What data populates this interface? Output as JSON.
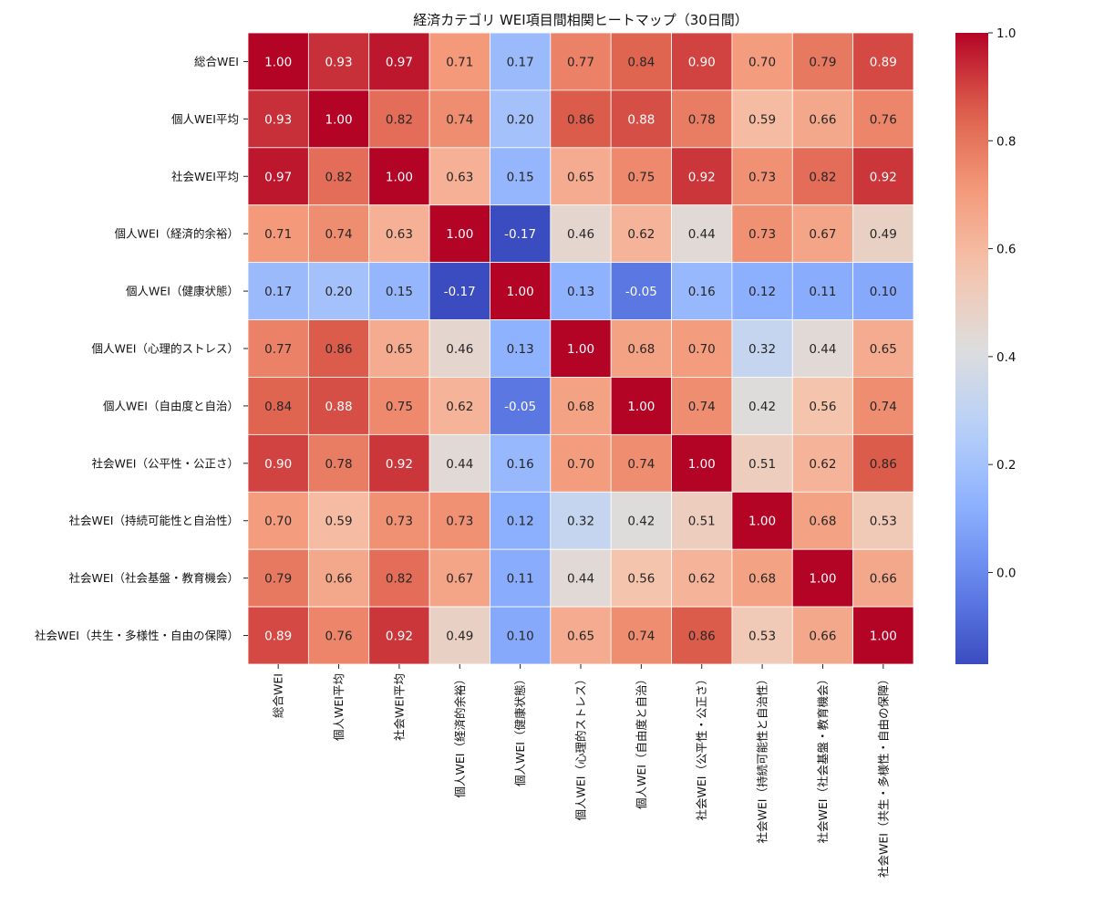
{
  "chart_data": {
    "type": "heatmap",
    "title": "経済カテゴリ WEI項目間相関ヒートマップ（30日間）",
    "xlabel": "",
    "ylabel": "",
    "labels": [
      "総合WEI",
      "個人WEI平均",
      "社会WEI平均",
      "個人WEI（経済的余裕）",
      "個人WEI（健康状態）",
      "個人WEI（心理的ストレス）",
      "個人WEI（自由度と自治）",
      "社会WEI（公平性・公正さ）",
      "社会WEI（持続可能性と自治性）",
      "社会WEI（社会基盤・教育機会）",
      "社会WEI（共生・多様性・自由の保障）"
    ],
    "matrix": [
      [
        1.0,
        0.93,
        0.97,
        0.71,
        0.17,
        0.77,
        0.84,
        0.9,
        0.7,
        0.79,
        0.89
      ],
      [
        0.93,
        1.0,
        0.82,
        0.74,
        0.2,
        0.86,
        0.88,
        0.78,
        0.59,
        0.66,
        0.76
      ],
      [
        0.97,
        0.82,
        1.0,
        0.63,
        0.15,
        0.65,
        0.75,
        0.92,
        0.73,
        0.82,
        0.92
      ],
      [
        0.71,
        0.74,
        0.63,
        1.0,
        -0.17,
        0.46,
        0.62,
        0.44,
        0.73,
        0.67,
        0.49
      ],
      [
        0.17,
        0.2,
        0.15,
        -0.17,
        1.0,
        0.13,
        -0.05,
        0.16,
        0.12,
        0.11,
        0.1
      ],
      [
        0.77,
        0.86,
        0.65,
        0.46,
        0.13,
        1.0,
        0.68,
        0.7,
        0.32,
        0.44,
        0.65
      ],
      [
        0.84,
        0.88,
        0.75,
        0.62,
        -0.05,
        0.68,
        1.0,
        0.74,
        0.42,
        0.56,
        0.74
      ],
      [
        0.9,
        0.78,
        0.92,
        0.44,
        0.16,
        0.7,
        0.74,
        1.0,
        0.51,
        0.62,
        0.86
      ],
      [
        0.7,
        0.59,
        0.73,
        0.73,
        0.12,
        0.32,
        0.42,
        0.51,
        1.0,
        0.68,
        0.53
      ],
      [
        0.79,
        0.66,
        0.82,
        0.67,
        0.11,
        0.44,
        0.56,
        0.62,
        0.68,
        1.0,
        0.66
      ],
      [
        0.89,
        0.76,
        0.92,
        0.49,
        0.1,
        0.65,
        0.74,
        0.86,
        0.53,
        0.66,
        1.0
      ]
    ],
    "color_range": [
      -0.17,
      1.0
    ],
    "colormap": "coolwarm",
    "colorbar_ticks": [
      0.0,
      0.2,
      0.4,
      0.6,
      0.8,
      1.0
    ],
    "colorbar_tick_labels": [
      "0.0",
      "0.2",
      "0.4",
      "0.6",
      "0.8",
      "1.0"
    ],
    "annotation_format": "2 decimals",
    "cell_border_color": "#ffffff",
    "text_color_dark": "#262626",
    "text_color_light": "#ffffff"
  }
}
